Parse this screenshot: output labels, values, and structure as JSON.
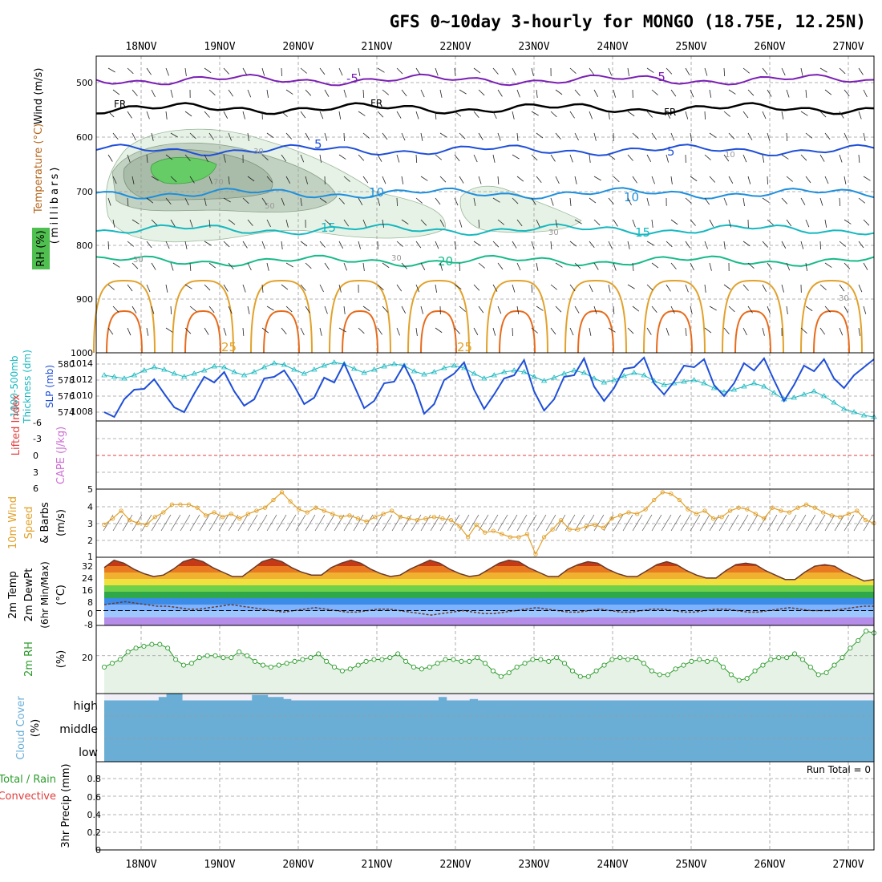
{
  "title": "GFS 0~10day 3-hourly for MONGO (18.75E, 12.25N)",
  "dates": [
    "18NOV",
    "19NOV",
    "20NOV",
    "21NOV",
    "22NOV",
    "23NOV",
    "24NOV",
    "25NOV",
    "26NOV",
    "27NOV"
  ],
  "run_total_label": "Run Total = 0",
  "colors": {
    "purple": "#7a1fb3",
    "blue": "#1f4fd8",
    "lightblue": "#1e8fdc",
    "teal": "#16b8c0",
    "green": "#18b98a",
    "orange": "#e2a12a",
    "darkorange": "#e86a1a",
    "magenta": "#d0156e",
    "sky": "#6aaed6",
    "rhgreen": "#2c9c2c"
  },
  "chart_data": [
    {
      "id": "upper",
      "type": "contour",
      "ylabels": [
        "Wind (m/s)",
        "Temperature (°C)",
        "(millibars)",
        "RH (%)"
      ],
      "yticks": [
        "500",
        "600",
        "700",
        "800",
        "900",
        "1000"
      ],
      "ylim": [
        1000,
        450
      ],
      "contour_labels": {
        "temp": [
          "-5",
          "-5",
          "FR",
          "FR",
          "FR",
          "5",
          "5",
          "10",
          "10",
          "15",
          "15",
          "20",
          "25",
          "25"
        ],
        "rh": [
          "30",
          "70",
          "50",
          "30",
          "30",
          "30",
          "10",
          "30"
        ]
      },
      "series": [
        {
          "name": "-5C",
          "level": 495,
          "color": "purple"
        },
        {
          "name": "FR",
          "level": 548,
          "color": "black"
        },
        {
          "name": "5C",
          "level": 625,
          "color": "blue"
        },
        {
          "name": "10C",
          "level": 705,
          "color": "lightblue"
        },
        {
          "name": "15C",
          "level": 772,
          "color": "teal"
        },
        {
          "name": "20C",
          "level": 830,
          "color": "green"
        }
      ]
    },
    {
      "id": "thickness_slp",
      "type": "line",
      "ylabels": [
        "1000-500mb",
        "Thickness (dm)",
        "SLP (mb)"
      ],
      "left_ticks": [
        "574",
        "576",
        "578",
        "580"
      ],
      "right_ticks": [
        "1008",
        "1010",
        "1012",
        "1014"
      ],
      "series": [
        {
          "name": "Thickness",
          "color": "teal",
          "axis": "left",
          "values": [
            578.6,
            578.4,
            578.2,
            578.6,
            579.2,
            579.6,
            579.3,
            578.8,
            578.4,
            578.8,
            579.2,
            579.7,
            579.6,
            579.0,
            578.6,
            579.0,
            579.6,
            580.1,
            579.9,
            579.3,
            578.8,
            579.3,
            579.8,
            580.2,
            580.0,
            579.4,
            578.9,
            579.3,
            579.7,
            580.0,
            579.8,
            579.1,
            578.7,
            579.0,
            579.5,
            579.8,
            579.5,
            578.8,
            578.2,
            578.6,
            579.0,
            579.2,
            579.0,
            578.4,
            577.9,
            578.3,
            578.8,
            579.2,
            578.9,
            578.2,
            577.7,
            578.0,
            578.5,
            578.9,
            578.6,
            577.9,
            577.4,
            577.6,
            577.8,
            578.0,
            577.6,
            577.0,
            576.5,
            576.8,
            577.2,
            577.6,
            577.2,
            576.4,
            575.6,
            575.8,
            576.2,
            576.6,
            576.0,
            575.2,
            574.4,
            574.0,
            573.6,
            573.4
          ]
        },
        {
          "name": "SLP",
          "color": "blue",
          "axis": "right",
          "values": [
            1008.0,
            1007.4,
            1009.6,
            1010.8,
            1010.9,
            1012.1,
            1010.3,
            1008.6,
            1008.0,
            1010.3,
            1012.4,
            1011.7,
            1013.0,
            1010.6,
            1008.8,
            1009.6,
            1012.2,
            1012.4,
            1013.2,
            1011.3,
            1009.0,
            1009.8,
            1012.3,
            1011.7,
            1014.1,
            1011.3,
            1008.5,
            1009.4,
            1011.6,
            1011.8,
            1013.9,
            1011.4,
            1007.8,
            1009.0,
            1012.0,
            1012.8,
            1014.2,
            1010.8,
            1008.4,
            1010.2,
            1012.2,
            1012.6,
            1014.5,
            1010.6,
            1008.2,
            1009.6,
            1012.4,
            1012.6,
            1014.7,
            1011.2,
            1009.4,
            1011.0,
            1013.4,
            1013.6,
            1014.8,
            1011.6,
            1010.2,
            1011.8,
            1013.8,
            1013.6,
            1014.6,
            1011.4,
            1010.0,
            1011.6,
            1014.1,
            1013.2,
            1014.7,
            1012.0,
            1009.4,
            1011.4,
            1013.8,
            1013.1,
            1014.6,
            1012.2,
            1011.0,
            1012.6,
            1013.6,
            1014.6
          ]
        }
      ]
    },
    {
      "id": "cape_li",
      "type": "line",
      "ylabels": [
        "Lifted Index",
        "CAPE (J/kg)"
      ],
      "yticks": [
        "-6",
        "-3",
        "0",
        "3",
        "6"
      ],
      "series": []
    },
    {
      "id": "wind10m",
      "type": "line",
      "ylabels": [
        "10m Wind",
        "Speed",
        "& Barbs",
        "(m/s)"
      ],
      "yticks": [
        "1",
        "2",
        "3",
        "4",
        "5"
      ],
      "ylim": [
        0.6,
        5.0
      ],
      "series": [
        {
          "name": "10m wind speed",
          "color": "orange",
          "values": [
            2.7,
            3.1,
            3.6,
            3.0,
            2.8,
            2.7,
            3.2,
            3.5,
            4.0,
            4.0,
            4.0,
            3.8,
            3.3,
            3.5,
            3.2,
            3.4,
            3.1,
            3.4,
            3.6,
            3.8,
            4.3,
            4.8,
            4.2,
            3.7,
            3.5,
            3.8,
            3.6,
            3.4,
            3.2,
            3.3,
            3.1,
            2.9,
            3.2,
            3.4,
            3.6,
            3.2,
            3.1,
            3.0,
            3.1,
            3.2,
            3.1,
            3.0,
            2.6,
            1.9,
            2.7,
            2.2,
            2.3,
            2.1,
            1.9,
            1.9,
            2.1,
            0.8,
            1.9,
            2.4,
            3.0,
            2.4,
            2.4,
            2.6,
            2.7,
            2.5,
            3.1,
            3.3,
            3.5,
            3.4,
            3.7,
            4.3,
            4.8,
            4.7,
            4.3,
            3.7,
            3.4,
            3.6,
            3.1,
            3.2,
            3.6,
            3.8,
            3.7,
            3.4,
            3.1,
            3.8,
            3.6,
            3.5,
            3.8,
            4.0,
            3.8,
            3.5,
            3.3,
            3.2,
            3.4,
            3.6,
            3.0,
            2.8
          ]
        }
      ]
    },
    {
      "id": "temp_dewpt",
      "type": "area",
      "ylabels": [
        "2m Temp",
        "2m DewPt",
        "(6hr Min/Max)",
        "(°C)"
      ],
      "yticks": [
        "-8",
        "0",
        "8",
        "16",
        "24",
        "32"
      ],
      "ylim": [
        -10,
        36
      ],
      "series": [
        {
          "name": "2m Temp",
          "values": [
            29,
            34,
            32,
            28,
            25,
            23,
            24,
            28,
            33,
            35,
            33,
            29,
            26,
            23,
            23,
            28,
            33,
            35,
            33,
            29,
            26,
            24,
            24,
            29,
            32,
            34,
            32,
            28,
            25,
            23,
            24,
            28,
            31,
            34,
            32,
            28,
            25,
            23,
            24,
            28,
            32,
            34,
            33,
            29,
            26,
            23,
            23,
            28,
            31,
            33,
            32,
            28,
            25,
            23,
            23,
            27,
            31,
            33,
            31,
            27,
            24,
            22,
            22,
            27,
            31,
            32,
            31,
            27,
            24,
            21,
            21,
            26,
            30,
            31,
            30,
            26,
            23,
            20,
            21
          ]
        },
        {
          "name": "2m DewPt",
          "values": [
            4,
            5,
            6,
            5,
            4,
            3,
            3,
            2,
            1,
            1,
            2,
            3,
            4,
            3,
            2,
            1,
            0,
            -1,
            0,
            1,
            2,
            1,
            0,
            -1,
            -1,
            0,
            1,
            1,
            0,
            -1,
            -2,
            -3,
            -2,
            -1,
            0,
            -1,
            -2,
            -2,
            -1,
            0,
            1,
            2,
            1,
            0,
            -1,
            -1,
            0,
            1,
            0,
            -1,
            -1,
            0,
            1,
            1,
            0,
            -1,
            -1,
            0,
            1,
            1,
            0,
            -1,
            -1,
            0,
            1,
            2,
            1,
            0,
            0,
            0,
            1,
            2,
            3,
            3
          ]
        }
      ]
    },
    {
      "id": "rh2m",
      "type": "line",
      "ylabels": [
        "2m RH",
        "(%)"
      ],
      "yticks": [
        "20"
      ],
      "ylim": [
        0,
        36
      ],
      "series": [
        {
          "name": "2m RH",
          "values": [
            14,
            16,
            18,
            22,
            24,
            25,
            26,
            26,
            24,
            18,
            15,
            16,
            19,
            20,
            20,
            19,
            19,
            22,
            20,
            17,
            15,
            14,
            15,
            16,
            17,
            18,
            19,
            21,
            17,
            14,
            12,
            13,
            15,
            17,
            18,
            18,
            19,
            21,
            17,
            14,
            13,
            14,
            16,
            18,
            18,
            17,
            17,
            19,
            16,
            12,
            9,
            11,
            14,
            16,
            18,
            18,
            17,
            19,
            16,
            12,
            9,
            9,
            12,
            15,
            18,
            19,
            18,
            19,
            16,
            12,
            10,
            10,
            13,
            15,
            17,
            18,
            17,
            18,
            14,
            10,
            7,
            8,
            12,
            15,
            18,
            19,
            19,
            21,
            18,
            14,
            10,
            11,
            15,
            19,
            24,
            28,
            33,
            32
          ]
        }
      ]
    },
    {
      "id": "cloud",
      "type": "bar",
      "ylabels": [
        "Cloud Cover",
        "(%)"
      ],
      "yticks": [
        "high",
        "middle",
        "low"
      ],
      "series": [
        {
          "name": "high cloud",
          "values": [
            90,
            90,
            90,
            90,
            90,
            90,
            90,
            95,
            100,
            100,
            90,
            90,
            90,
            90,
            90,
            90,
            90,
            90,
            90,
            98,
            98,
            95,
            95,
            92,
            90,
            90,
            90,
            90,
            90,
            90,
            90,
            90,
            90,
            90,
            90,
            90,
            90,
            90,
            90,
            90,
            90,
            90,
            90,
            95,
            90,
            90,
            90,
            92,
            90,
            90,
            90,
            90,
            90,
            90,
            90,
            90,
            90,
            90,
            90,
            90,
            90,
            90,
            90,
            90,
            90,
            90,
            90,
            90,
            90,
            90,
            90,
            90,
            90,
            90,
            90,
            90,
            90,
            90,
            90,
            90,
            90,
            90,
            90,
            90,
            90,
            90,
            90,
            90,
            90,
            90,
            90,
            90,
            90,
            90,
            90,
            90,
            90,
            90,
            90
          ]
        }
      ]
    },
    {
      "id": "precip",
      "type": "bar",
      "ylabels": [
        "Total / Rain",
        "Convective",
        "3hr Precip (mm)"
      ],
      "yticks": [
        "0",
        "0.2",
        "0.4",
        "0.6",
        "0.8"
      ],
      "ylim": [
        0,
        0.95
      ],
      "series": [
        {
          "name": "3hr precip",
          "values": []
        }
      ]
    }
  ]
}
